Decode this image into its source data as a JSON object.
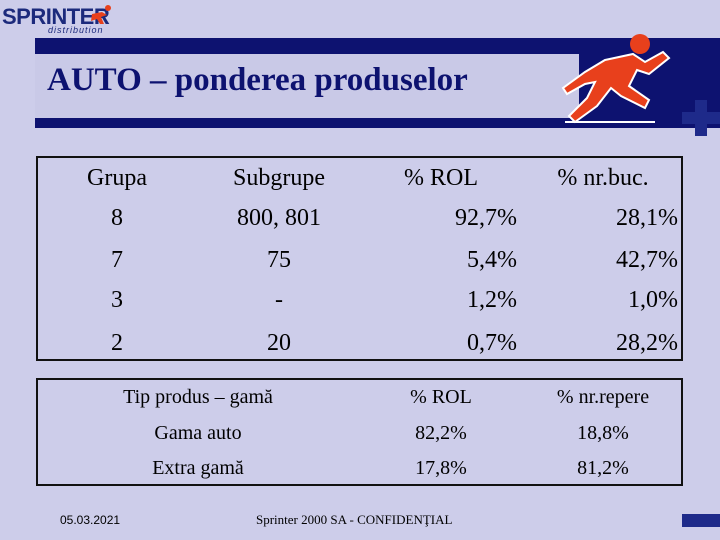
{
  "logo": {
    "brand": "SPRINTER",
    "sub": "distribution"
  },
  "title": "AUTO – ponderea produselor",
  "table1": {
    "headers": [
      "Grupa",
      "Subgrupe",
      "% ROL",
      "% nr.buc."
    ],
    "rows": [
      [
        "8",
        "800, 801",
        "92,7%",
        "28,1%"
      ],
      [
        "7",
        "75",
        "5,4%",
        "42,7%"
      ],
      [
        "3",
        "-",
        "1,2%",
        "1,0%"
      ],
      [
        "2",
        "20",
        "0,7%",
        "28,2%"
      ]
    ]
  },
  "table2": {
    "headers": [
      "Tip produs – gamă",
      "% ROL",
      "% nr.repere"
    ],
    "rows": [
      [
        "Gama auto",
        "82,2%",
        "18,8%"
      ],
      [
        "Extra gamă",
        "17,8%",
        "81,2%"
      ]
    ]
  },
  "footer": {
    "date": "05.03.2021",
    "confidential": "Sprinter 2000 SA - CONFIDENŢIAL"
  },
  "colors": {
    "banner": "#0d1270",
    "background": "#cdcdea",
    "accent": "#e8401c"
  },
  "icons": [
    "runner-logo-icon",
    "plus-icon"
  ]
}
